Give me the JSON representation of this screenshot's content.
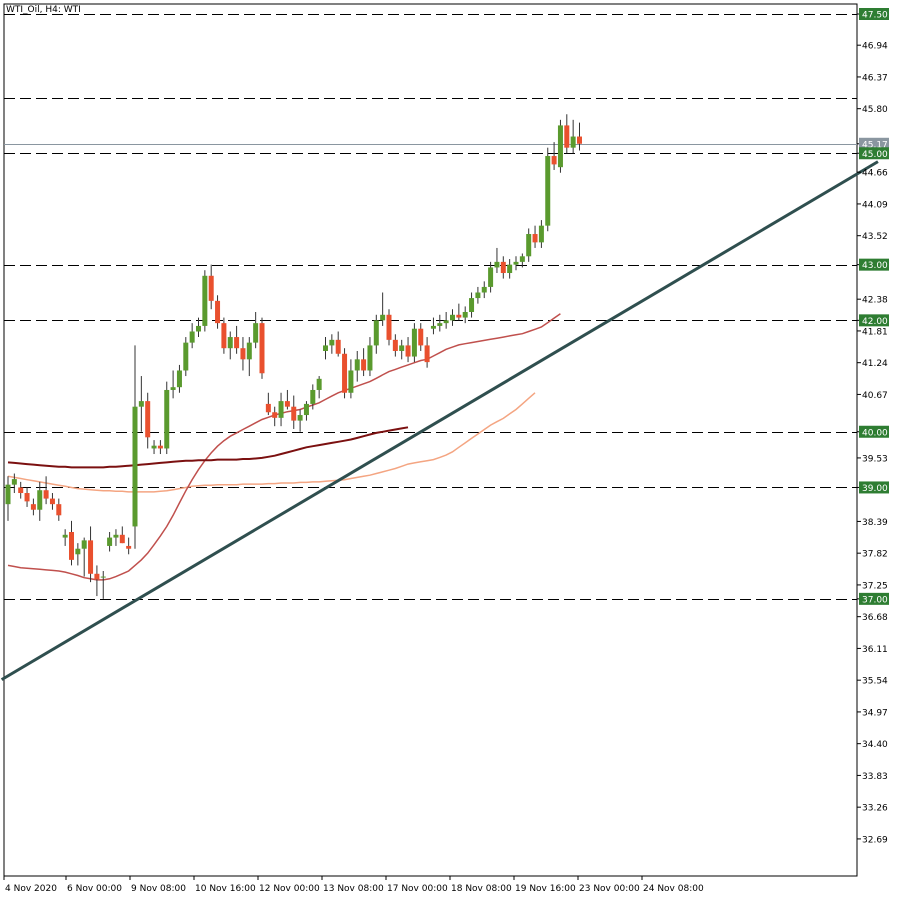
{
  "chart_data": {
    "type": "candlestick",
    "title": "WTI_Oil, H4:  WTI",
    "colors": {
      "bull": "#5a9a2e",
      "bear": "#e9502e",
      "wick": "#333333",
      "grid_dash": "#000000",
      "level_label_bg": "#2e7d32",
      "price_label_bg": "#8a96a0",
      "trendline": "#2f4f4f",
      "ma_fast": "#c0504d",
      "ma_mid": "#f4a582",
      "ma_slow": "#7b1010"
    },
    "y_axis": {
      "ticks": [
        "47.50",
        "46.94",
        "46.37",
        "45.80",
        "45.17",
        "45.00",
        "44.66",
        "44.09",
        "43.52",
        "43.00",
        "42.38",
        "42.00",
        "41.81",
        "41.24",
        "40.67",
        "40.00",
        "39.53",
        "39.00",
        "38.39",
        "37.82",
        "37.25",
        "37.00",
        "36.68",
        "36.11",
        "35.54",
        "34.97",
        "34.40",
        "33.83",
        "33.26",
        "32.69"
      ],
      "ylim": [
        32.2,
        47.7
      ]
    },
    "x_axis": {
      "ticks": [
        "4 Nov 2020",
        "6 Nov 00:00",
        "9 Nov 08:00",
        "10 Nov 16:00",
        "12 Nov 00:00",
        "13 Nov 08:00",
        "17 Nov 00:00",
        "18 Nov 08:00",
        "19 Nov 16:00",
        "23 Nov 00:00",
        "24 Nov 08:00"
      ]
    },
    "levels": [
      "47.50",
      "46.00",
      "45.00",
      "43.00",
      "42.00",
      "40.00",
      "39.00",
      "37.00"
    ],
    "current_price": "45.17",
    "candles": [
      {
        "o": 38.7,
        "h": 39.2,
        "l": 38.4,
        "c": 39.05
      },
      {
        "o": 39.05,
        "h": 39.25,
        "l": 38.9,
        "c": 39.15
      },
      {
        "o": 39.0,
        "h": 39.1,
        "l": 38.8,
        "c": 38.9
      },
      {
        "o": 38.9,
        "h": 39.0,
        "l": 38.65,
        "c": 38.75
      },
      {
        "o": 38.7,
        "h": 38.8,
        "l": 38.5,
        "c": 38.6
      },
      {
        "o": 38.6,
        "h": 39.1,
        "l": 38.4,
        "c": 38.95
      },
      {
        "o": 38.95,
        "h": 39.2,
        "l": 38.7,
        "c": 38.8
      },
      {
        "o": 38.8,
        "h": 38.9,
        "l": 38.6,
        "c": 38.7
      },
      {
        "o": 38.7,
        "h": 38.8,
        "l": 38.4,
        "c": 38.5
      },
      {
        "o": 38.1,
        "h": 38.25,
        "l": 37.95,
        "c": 38.15
      },
      {
        "o": 38.2,
        "h": 38.4,
        "l": 37.6,
        "c": 37.7
      },
      {
        "o": 37.8,
        "h": 38.0,
        "l": 37.6,
        "c": 37.9
      },
      {
        "o": 37.9,
        "h": 38.1,
        "l": 37.4,
        "c": 38.05
      },
      {
        "o": 38.05,
        "h": 38.3,
        "l": 37.3,
        "c": 37.45
      },
      {
        "o": 37.45,
        "h": 37.6,
        "l": 37.05,
        "c": 37.35
      },
      {
        "o": 37.4,
        "h": 37.5,
        "l": 37.0,
        "c": 37.4
      },
      {
        "o": 37.95,
        "h": 38.2,
        "l": 37.85,
        "c": 38.1
      },
      {
        "o": 38.1,
        "h": 38.25,
        "l": 37.95,
        "c": 38.15
      },
      {
        "o": 38.15,
        "h": 38.3,
        "l": 38.0,
        "c": 38.0
      },
      {
        "o": 37.95,
        "h": 38.1,
        "l": 37.8,
        "c": 37.9
      },
      {
        "o": 38.3,
        "h": 41.55,
        "l": 37.9,
        "c": 40.45
      },
      {
        "o": 40.45,
        "h": 41.0,
        "l": 40.0,
        "c": 40.55
      },
      {
        "o": 40.55,
        "h": 40.7,
        "l": 39.7,
        "c": 39.9
      },
      {
        "o": 39.7,
        "h": 39.85,
        "l": 39.6,
        "c": 39.75
      },
      {
        "o": 39.75,
        "h": 39.85,
        "l": 39.6,
        "c": 39.7
      },
      {
        "o": 39.7,
        "h": 40.9,
        "l": 39.6,
        "c": 40.75
      },
      {
        "o": 40.75,
        "h": 41.1,
        "l": 40.6,
        "c": 40.8
      },
      {
        "o": 40.8,
        "h": 41.2,
        "l": 40.7,
        "c": 41.1
      },
      {
        "o": 41.1,
        "h": 41.7,
        "l": 41.0,
        "c": 41.6
      },
      {
        "o": 41.6,
        "h": 41.95,
        "l": 41.5,
        "c": 41.8
      },
      {
        "o": 41.8,
        "h": 42.05,
        "l": 41.7,
        "c": 41.9
      },
      {
        "o": 41.9,
        "h": 42.9,
        "l": 41.8,
        "c": 42.8
      },
      {
        "o": 42.8,
        "h": 43.0,
        "l": 42.2,
        "c": 42.35
      },
      {
        "o": 42.35,
        "h": 42.45,
        "l": 41.85,
        "c": 41.95
      },
      {
        "o": 41.95,
        "h": 42.05,
        "l": 41.4,
        "c": 41.5
      },
      {
        "o": 41.5,
        "h": 41.8,
        "l": 41.3,
        "c": 41.7
      },
      {
        "o": 41.7,
        "h": 41.9,
        "l": 41.4,
        "c": 41.5
      },
      {
        "o": 41.5,
        "h": 41.7,
        "l": 41.1,
        "c": 41.3
      },
      {
        "o": 41.3,
        "h": 41.7,
        "l": 41.0,
        "c": 41.6
      },
      {
        "o": 41.6,
        "h": 42.15,
        "l": 41.5,
        "c": 41.95
      },
      {
        "o": 41.95,
        "h": 42.05,
        "l": 40.95,
        "c": 41.05
      },
      {
        "o": 40.5,
        "h": 40.7,
        "l": 40.3,
        "c": 40.35
      },
      {
        "o": 40.35,
        "h": 40.45,
        "l": 40.1,
        "c": 40.25
      },
      {
        "o": 40.25,
        "h": 40.7,
        "l": 40.1,
        "c": 40.55
      },
      {
        "o": 40.55,
        "h": 40.75,
        "l": 40.4,
        "c": 40.45
      },
      {
        "o": 40.45,
        "h": 40.65,
        "l": 40.05,
        "c": 40.2
      },
      {
        "o": 40.2,
        "h": 40.4,
        "l": 40.0,
        "c": 40.3
      },
      {
        "o": 40.3,
        "h": 40.55,
        "l": 40.2,
        "c": 40.5
      },
      {
        "o": 40.5,
        "h": 40.85,
        "l": 40.4,
        "c": 40.75
      },
      {
        "o": 40.75,
        "h": 41.0,
        "l": 40.6,
        "c": 40.95
      },
      {
        "o": 41.45,
        "h": 41.7,
        "l": 41.3,
        "c": 41.55
      },
      {
        "o": 41.55,
        "h": 41.75,
        "l": 41.4,
        "c": 41.65
      },
      {
        "o": 41.65,
        "h": 41.8,
        "l": 41.35,
        "c": 41.4
      },
      {
        "o": 41.4,
        "h": 41.5,
        "l": 40.6,
        "c": 40.7
      },
      {
        "o": 40.7,
        "h": 41.3,
        "l": 40.6,
        "c": 41.1
      },
      {
        "o": 41.1,
        "h": 41.45,
        "l": 40.9,
        "c": 41.3
      },
      {
        "o": 41.3,
        "h": 41.5,
        "l": 41.0,
        "c": 41.1
      },
      {
        "o": 41.1,
        "h": 41.7,
        "l": 41.0,
        "c": 41.55
      },
      {
        "o": 41.55,
        "h": 42.1,
        "l": 41.4,
        "c": 42.0
      },
      {
        "o": 42.0,
        "h": 42.5,
        "l": 41.9,
        "c": 42.1
      },
      {
        "o": 42.1,
        "h": 42.2,
        "l": 41.55,
        "c": 41.65
      },
      {
        "o": 41.65,
        "h": 41.75,
        "l": 41.35,
        "c": 41.45
      },
      {
        "o": 41.45,
        "h": 41.65,
        "l": 41.3,
        "c": 41.55
      },
      {
        "o": 41.55,
        "h": 41.7,
        "l": 41.25,
        "c": 41.35
      },
      {
        "o": 41.35,
        "h": 41.95,
        "l": 41.25,
        "c": 41.85
      },
      {
        "o": 41.85,
        "h": 41.95,
        "l": 41.45,
        "c": 41.55
      },
      {
        "o": 41.55,
        "h": 41.7,
        "l": 41.15,
        "c": 41.25
      },
      {
        "o": 41.85,
        "h": 42.05,
        "l": 41.75,
        "c": 41.9
      },
      {
        "o": 41.9,
        "h": 42.1,
        "l": 41.8,
        "c": 41.95
      },
      {
        "o": 41.95,
        "h": 42.15,
        "l": 41.85,
        "c": 42.0
      },
      {
        "o": 42.0,
        "h": 42.2,
        "l": 41.9,
        "c": 42.1
      },
      {
        "o": 42.1,
        "h": 42.3,
        "l": 42.0,
        "c": 42.05
      },
      {
        "o": 42.05,
        "h": 42.25,
        "l": 41.95,
        "c": 42.15
      },
      {
        "o": 42.15,
        "h": 42.5,
        "l": 42.05,
        "c": 42.4
      },
      {
        "o": 42.4,
        "h": 42.6,
        "l": 42.3,
        "c": 42.5
      },
      {
        "o": 42.5,
        "h": 42.7,
        "l": 42.4,
        "c": 42.6
      },
      {
        "o": 42.6,
        "h": 43.05,
        "l": 42.5,
        "c": 42.95
      },
      {
        "o": 42.95,
        "h": 43.3,
        "l": 42.85,
        "c": 43.05
      },
      {
        "o": 43.05,
        "h": 43.15,
        "l": 42.75,
        "c": 42.85
      },
      {
        "o": 42.85,
        "h": 43.1,
        "l": 42.75,
        "c": 43.0
      },
      {
        "o": 43.0,
        "h": 43.15,
        "l": 42.9,
        "c": 43.05
      },
      {
        "o": 43.05,
        "h": 43.2,
        "l": 42.95,
        "c": 43.15
      },
      {
        "o": 43.15,
        "h": 43.65,
        "l": 43.05,
        "c": 43.55
      },
      {
        "o": 43.55,
        "h": 43.7,
        "l": 43.3,
        "c": 43.4
      },
      {
        "o": 43.4,
        "h": 43.8,
        "l": 43.3,
        "c": 43.7
      },
      {
        "o": 43.7,
        "h": 45.1,
        "l": 43.6,
        "c": 44.95
      },
      {
        "o": 44.95,
        "h": 45.2,
        "l": 44.7,
        "c": 44.8
      },
      {
        "o": 44.75,
        "h": 45.6,
        "l": 44.65,
        "c": 45.5
      },
      {
        "o": 45.5,
        "h": 45.7,
        "l": 45.0,
        "c": 45.1
      },
      {
        "o": 45.1,
        "h": 45.6,
        "l": 45.0,
        "c": 45.3
      },
      {
        "o": 45.3,
        "h": 45.55,
        "l": 45.05,
        "c": 45.17
      }
    ],
    "trendline": [
      [
        -1,
        35.55
      ],
      [
        137,
        44.85
      ]
    ],
    "ma_fast": [
      37.6,
      37.58,
      37.56,
      37.55,
      37.54,
      37.53,
      37.52,
      37.51,
      37.5,
      37.48,
      37.45,
      37.42,
      37.38,
      37.36,
      37.34,
      37.34,
      37.36,
      37.4,
      37.45,
      37.5,
      37.6,
      37.7,
      37.82,
      37.97,
      38.13,
      38.3,
      38.5,
      38.72,
      38.94,
      39.14,
      39.32,
      39.48,
      39.62,
      39.74,
      39.84,
      39.92,
      39.98,
      40.04,
      40.1,
      40.16,
      40.22,
      40.26,
      40.3,
      40.33,
      40.36,
      40.38,
      40.4,
      40.44,
      40.48,
      40.52,
      40.58,
      40.64,
      40.7,
      40.74,
      40.78,
      40.82,
      40.86,
      40.9,
      40.96,
      41.02,
      41.08,
      41.12,
      41.16,
      41.2,
      41.24,
      41.28,
      41.3,
      41.36,
      41.42,
      41.48,
      41.52,
      41.56,
      41.58,
      41.6,
      41.62,
      41.64,
      41.66,
      41.68,
      41.7,
      41.72,
      41.74,
      41.76,
      41.8,
      41.84,
      41.88,
      41.96,
      42.04,
      42.12
    ],
    "ma_mid": [
      39.2,
      39.18,
      39.16,
      39.14,
      39.12,
      39.1,
      39.08,
      39.06,
      39.04,
      39.02,
      39.0,
      38.98,
      38.97,
      38.96,
      38.95,
      38.94,
      38.94,
      38.93,
      38.93,
      38.92,
      38.92,
      38.92,
      38.92,
      38.92,
      38.93,
      38.94,
      38.96,
      38.98,
      39.0,
      39.02,
      39.03,
      39.04,
      39.04,
      39.05,
      39.05,
      39.05,
      39.05,
      39.06,
      39.06,
      39.06,
      39.06,
      39.07,
      39.07,
      39.08,
      39.08,
      39.08,
      39.09,
      39.09,
      39.1,
      39.1,
      39.11,
      39.12,
      39.13,
      39.14,
      39.16,
      39.18,
      39.2,
      39.22,
      39.25,
      39.28,
      39.31,
      39.34,
      39.38,
      39.42,
      39.44,
      39.46,
      39.48,
      39.5,
      39.54,
      39.58,
      39.64,
      39.72,
      39.8,
      39.88,
      39.96,
      40.04,
      40.12,
      40.18,
      40.24,
      40.32,
      40.4,
      40.5,
      40.6,
      40.7
    ],
    "ma_slow": [
      39.45,
      39.44,
      39.43,
      39.42,
      39.41,
      39.4,
      39.39,
      39.38,
      39.37,
      39.37,
      39.36,
      39.36,
      39.36,
      39.36,
      39.36,
      39.36,
      39.37,
      39.37,
      39.38,
      39.39,
      39.4,
      39.41,
      39.42,
      39.43,
      39.44,
      39.45,
      39.46,
      39.47,
      39.48,
      39.48,
      39.49,
      39.49,
      39.49,
      39.5,
      39.5,
      39.5,
      39.5,
      39.51,
      39.51,
      39.52,
      39.53,
      39.55,
      39.57,
      39.6,
      39.63,
      39.66,
      39.69,
      39.72,
      39.74,
      39.76,
      39.78,
      39.8,
      39.82,
      39.84,
      39.86,
      39.89,
      39.92,
      39.95,
      39.98,
      40.0,
      40.02,
      40.04,
      40.06,
      40.08
    ]
  }
}
